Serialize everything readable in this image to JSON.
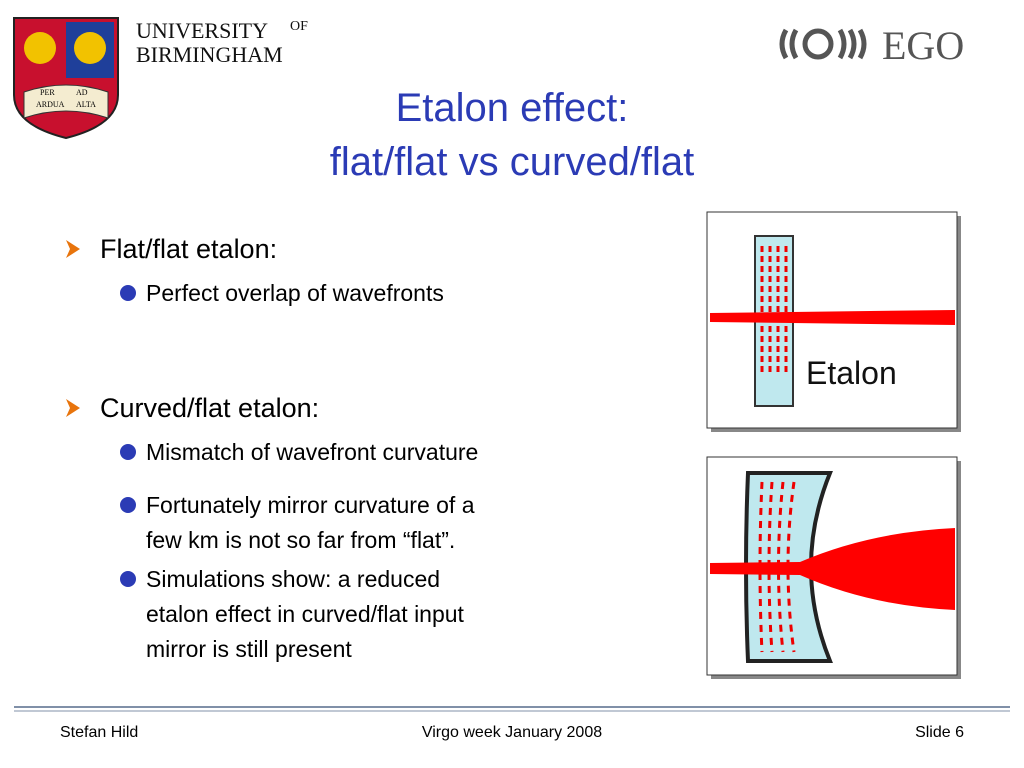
{
  "header": {
    "university": {
      "name_line1": "UNIVERSITY",
      "of": "OF",
      "name_line2": "BIRMINGHAM",
      "motto": [
        "PER",
        "AD",
        "ARDUA",
        "ALTA"
      ]
    },
    "partner_logo": "EGO"
  },
  "title": [
    "Etalon effect:",
    "flat/flat vs curved/flat"
  ],
  "bullets": [
    {
      "text": "Flat/flat etalon:",
      "subitems": [
        [
          "Perfect overlap of wavefronts"
        ]
      ]
    },
    {
      "text": "Curved/flat etalon:",
      "subitems": [
        [
          "Mismatch of wavefront curvature"
        ],
        [
          "Fortunately mirror curvature of a",
          "few km is not so far from “flat”."
        ],
        [
          "Simulations show: a reduced",
          "etalon effect in curved/flat input",
          "mirror is still present"
        ]
      ]
    }
  ],
  "figure_label": "Etalon",
  "footer": {
    "author": "Stefan Hild",
    "event": "Virgo week January 2008",
    "slide": "Slide 6"
  }
}
